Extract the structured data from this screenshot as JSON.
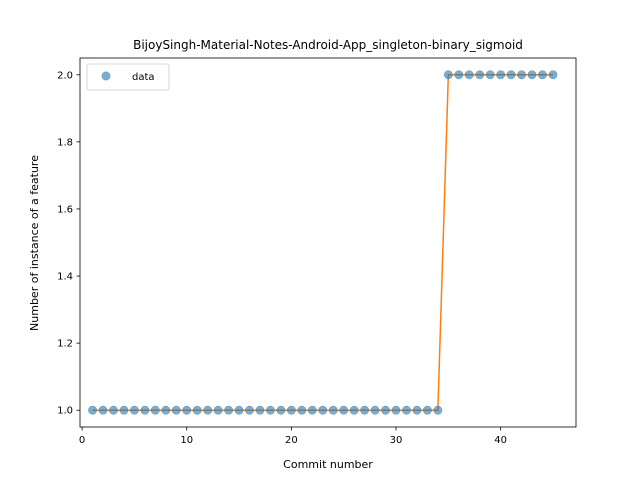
{
  "chart_data": {
    "type": "scatter",
    "title": "BijoySingh-Material-Notes-Android-App_singleton-binary_sigmoid",
    "xlabel": "Commit number",
    "ylabel": "Number of instance of a feature",
    "xlim": [
      -0.2,
      47.2
    ],
    "ylim": [
      0.95,
      2.05
    ],
    "xticks": [
      0,
      10,
      20,
      30,
      40
    ],
    "yticks": [
      1.0,
      1.2,
      1.4,
      1.6,
      1.8,
      2.0
    ],
    "xtick_labels": [
      "0",
      "10",
      "20",
      "30",
      "40"
    ],
    "ytick_labels": [
      "1.0",
      "1.2",
      "1.4",
      "1.6",
      "1.8",
      "2.0"
    ],
    "grid": false,
    "legend": {
      "position": "top-left",
      "entries": [
        "data"
      ]
    },
    "series": [
      {
        "name": "data",
        "style": "markers",
        "color": "#1f77b4",
        "x": [
          1,
          2,
          3,
          4,
          5,
          6,
          7,
          8,
          9,
          10,
          11,
          12,
          13,
          14,
          15,
          16,
          17,
          18,
          19,
          20,
          21,
          22,
          23,
          24,
          25,
          26,
          27,
          28,
          29,
          30,
          31,
          32,
          33,
          34,
          35,
          36,
          37,
          38,
          39,
          40,
          41,
          42,
          43,
          44,
          45
        ],
        "y": [
          1,
          1,
          1,
          1,
          1,
          1,
          1,
          1,
          1,
          1,
          1,
          1,
          1,
          1,
          1,
          1,
          1,
          1,
          1,
          1,
          1,
          1,
          1,
          1,
          1,
          1,
          1,
          1,
          1,
          1,
          1,
          1,
          1,
          1,
          2,
          2,
          2,
          2,
          2,
          2,
          2,
          2,
          2,
          2,
          2
        ]
      },
      {
        "style": "line",
        "color": "#ff7f0e",
        "x": [
          1,
          2,
          3,
          4,
          5,
          6,
          7,
          8,
          9,
          10,
          11,
          12,
          13,
          14,
          15,
          16,
          17,
          18,
          19,
          20,
          21,
          22,
          23,
          24,
          25,
          26,
          27,
          28,
          29,
          30,
          31,
          32,
          33,
          34,
          35,
          36,
          37,
          38,
          39,
          40,
          41,
          42,
          43,
          44,
          45
        ],
        "y": [
          1,
          1,
          1,
          1,
          1,
          1,
          1,
          1,
          1,
          1,
          1,
          1,
          1,
          1,
          1,
          1,
          1,
          1,
          1,
          1,
          1,
          1,
          1,
          1,
          1,
          1,
          1,
          1,
          1,
          1,
          1,
          1,
          1,
          1,
          2,
          2,
          2,
          2,
          2,
          2,
          2,
          2,
          2,
          2,
          2
        ]
      }
    ]
  }
}
